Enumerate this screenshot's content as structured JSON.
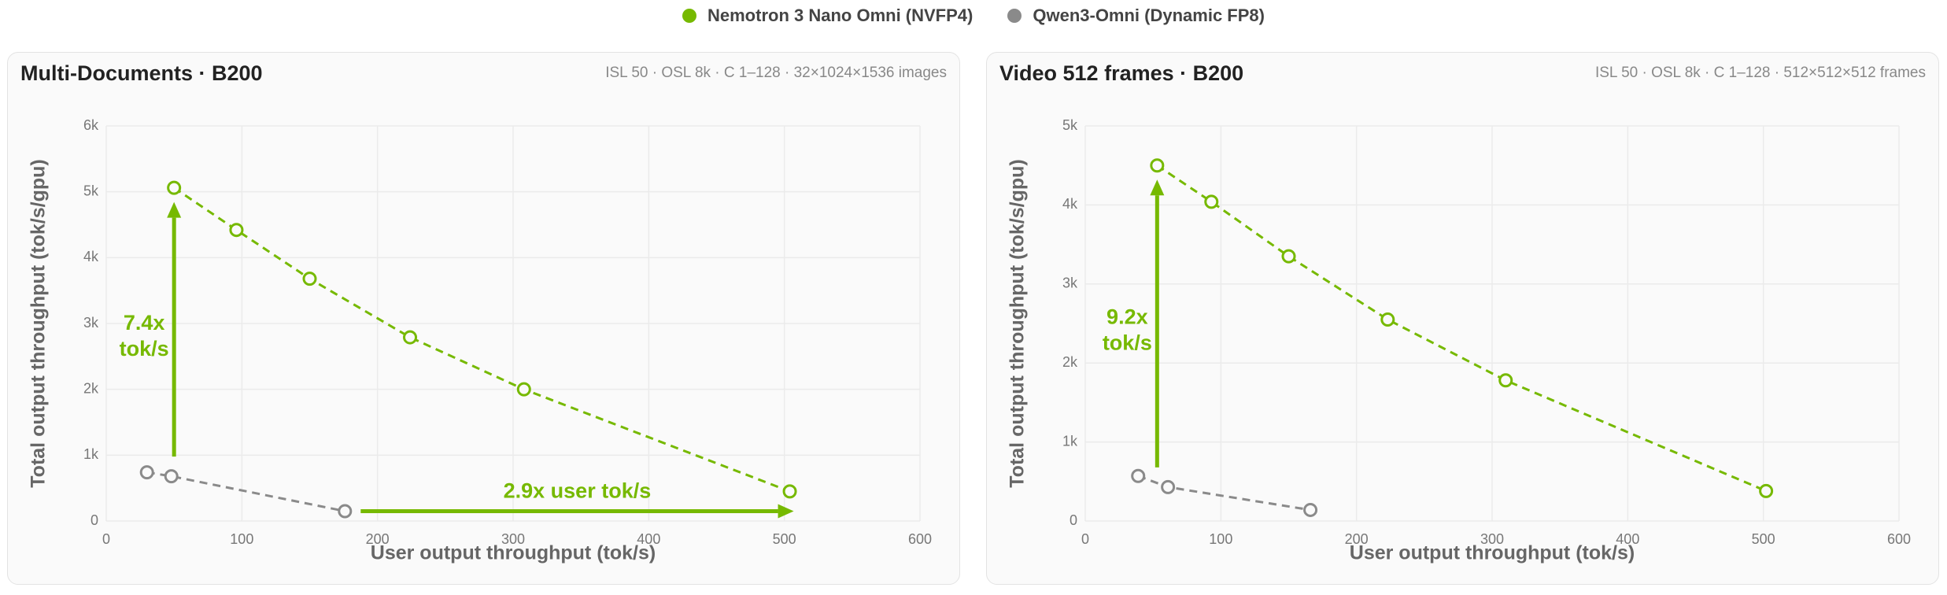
{
  "legend": [
    {
      "name": "Nemotron 3 Nano Omni (NVFP4)",
      "color": "#76b900"
    },
    {
      "name": "Qwen3-Omni (Dynamic FP8)",
      "color": "#8a8a8a"
    }
  ],
  "chart_data": [
    {
      "type": "line",
      "title": "Multi-Documents · B200",
      "subtitle": "ISL 50 · OSL 8k · C 1–128 · 32×1024×1536 images",
      "x_label": "User output throughput (tok/s)",
      "y_label": "Total output throughput (tok/s/gpu)",
      "xlim": [
        0,
        600
      ],
      "xticks": [
        0,
        100,
        200,
        300,
        400,
        500,
        600
      ],
      "ylim": [
        0,
        6000
      ],
      "yticks": [
        0,
        {
          "value": 1000,
          "label": "1k"
        },
        {
          "value": 2000,
          "label": "2k"
        },
        {
          "value": 3000,
          "label": "3k"
        },
        {
          "value": 4000,
          "label": "4k"
        },
        {
          "value": 5000,
          "label": "5k"
        },
        {
          "value": 6000,
          "label": "6k"
        }
      ],
      "grid": true,
      "series": [
        {
          "x": [
            50,
            96,
            150,
            224,
            308,
            504
          ],
          "values": [
            5060,
            4420,
            3680,
            2790,
            2000,
            450
          ]
        },
        {
          "x": [
            30,
            48,
            176
          ],
          "values": [
            740,
            680,
            150
          ]
        }
      ],
      "annotations": [
        [
          "7.4x",
          "tok/s"
        ],
        [
          "2.9x user tok/s"
        ]
      ]
    },
    {
      "type": "line",
      "title": "Video 512 frames · B200",
      "subtitle": "ISL 50 · OSL 8k · C 1–128 · 512×512×512 frames",
      "x_label": "User output throughput (tok/s)",
      "y_label": "Total output throughput (tok/s/gpu)",
      "xlim": [
        0,
        600
      ],
      "xticks": [
        0,
        100,
        200,
        300,
        400,
        500,
        600
      ],
      "ylim": [
        0,
        5000
      ],
      "yticks": [
        0,
        {
          "value": 1000,
          "label": "1k"
        },
        {
          "value": 2000,
          "label": "2k"
        },
        {
          "value": 3000,
          "label": "3k"
        },
        {
          "value": 4000,
          "label": "4k"
        },
        {
          "value": 5000,
          "label": "5k"
        }
      ],
      "grid": true,
      "series": [
        {
          "x": [
            53,
            93,
            150,
            223,
            310,
            502
          ],
          "values": [
            4500,
            4040,
            3350,
            2550,
            1780,
            380
          ]
        },
        {
          "x": [
            39,
            61,
            166
          ],
          "values": [
            570,
            430,
            140
          ]
        }
      ],
      "annotations": [
        [
          "9.2x",
          "tok/s"
        ]
      ]
    }
  ]
}
